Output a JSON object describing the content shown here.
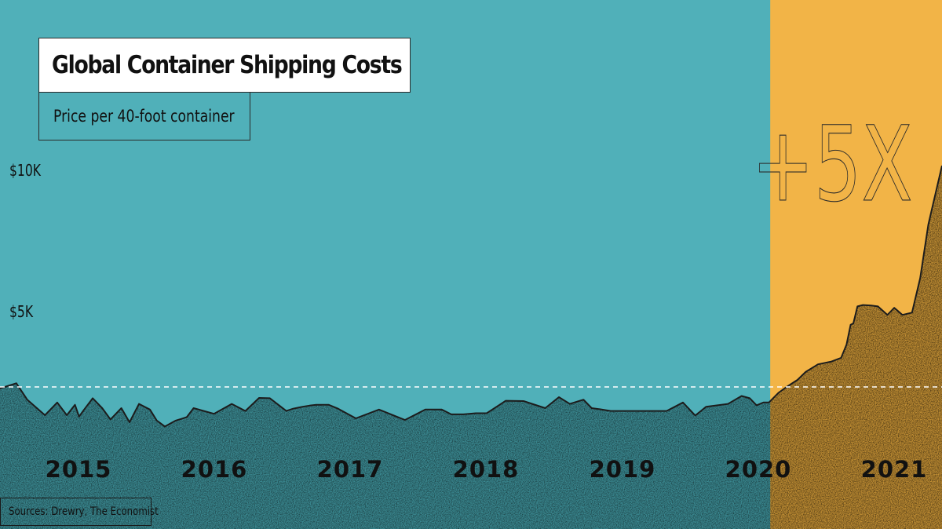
{
  "title": "Global Container Shipping Costs",
  "subtitle": "Price per 40-foot container",
  "source": "Sources: Drewry, The Economist",
  "annotation": "+5X",
  "colors": {
    "background": "#50b0b9",
    "highlight": "#f2b447",
    "area_fill": "#2a6b73",
    "area_fill_highlight": "#6b4a12",
    "line": "#1c1c1c"
  },
  "chart_data": {
    "type": "area",
    "title": "Global Container Shipping Costs",
    "subtitle": "Price per 40-foot container",
    "xlabel": "",
    "ylabel": "",
    "y_ticks": [
      {
        "value": 5000,
        "label": "$5K"
      },
      {
        "value": 10000,
        "label": "$10K"
      }
    ],
    "x_ticks": [
      {
        "value": 2015.0,
        "label": "2015"
      },
      {
        "value": 2016.0,
        "label": "2016"
      },
      {
        "value": 2017.0,
        "label": "2017"
      },
      {
        "value": 2018.0,
        "label": "2018"
      },
      {
        "value": 2019.0,
        "label": "2019"
      },
      {
        "value": 2020.0,
        "label": "2020"
      },
      {
        "value": 2021.0,
        "label": "2021"
      }
    ],
    "xlim": [
      2014.35,
      2021.26
    ],
    "ylim": [
      0,
      10600
    ],
    "reference_line_value": 2250,
    "highlight_range": [
      2020.0,
      2021.26
    ],
    "grid": false,
    "legend": "none",
    "series": [
      {
        "x": [
          2014.35,
          2014.47,
          2014.55,
          2014.68,
          2014.77,
          2014.84,
          2014.9,
          2014.93,
          2014.96,
          2015.03,
          2015.1,
          2015.16,
          2015.24,
          2015.3,
          2015.37,
          2015.45,
          2015.5,
          2015.56,
          2015.64,
          2015.68,
          2015.72,
          2015.77,
          2015.92,
          2016.05,
          2016.15,
          2016.25,
          2016.33,
          2016.45,
          2016.5,
          2016.57,
          2016.62,
          2016.67,
          2016.76,
          2016.83,
          2016.96,
          2017.13,
          2017.32,
          2017.47,
          2017.59,
          2017.66,
          2017.75,
          2017.84,
          2017.92,
          2018.06,
          2018.19,
          2018.35,
          2018.45,
          2018.53,
          2018.63,
          2018.69,
          2018.75,
          2018.83,
          2018.89,
          2018.96,
          2019.12,
          2019.24,
          2019.36,
          2019.45,
          2019.53,
          2019.69,
          2019.79,
          2019.85,
          2019.9,
          2019.95,
          2019.99,
          2020.06,
          2020.12,
          2020.2,
          2020.26,
          2020.35,
          2020.45,
          2020.52,
          2020.56,
          2020.59,
          2020.61,
          2020.64,
          2020.68,
          2020.74,
          2020.79,
          2020.86,
          2020.91,
          2020.97,
          2021.04,
          2021.1,
          2021.16,
          2021.26
        ],
        "y": [
          2200,
          2380,
          1800,
          1250,
          1700,
          1250,
          1620,
          1200,
          1400,
          1850,
          1500,
          1100,
          1500,
          1000,
          1650,
          1450,
          1060,
          850,
          1060,
          1120,
          1180,
          1500,
          1300,
          1650,
          1400,
          1860,
          1850,
          1400,
          1480,
          1550,
          1590,
          1620,
          1620,
          1480,
          1140,
          1450,
          1080,
          1450,
          1450,
          1280,
          1280,
          1320,
          1320,
          1760,
          1750,
          1500,
          1890,
          1650,
          1800,
          1500,
          1460,
          1400,
          1400,
          1400,
          1400,
          1400,
          1700,
          1240,
          1550,
          1650,
          1930,
          1850,
          1600,
          1700,
          1700,
          2040,
          2250,
          2500,
          2780,
          3050,
          3150,
          3280,
          3750,
          4450,
          4500,
          5100,
          5150,
          5130,
          5100,
          4800,
          5050,
          4800,
          4880,
          6100,
          8000,
          10080
        ]
      }
    ]
  }
}
